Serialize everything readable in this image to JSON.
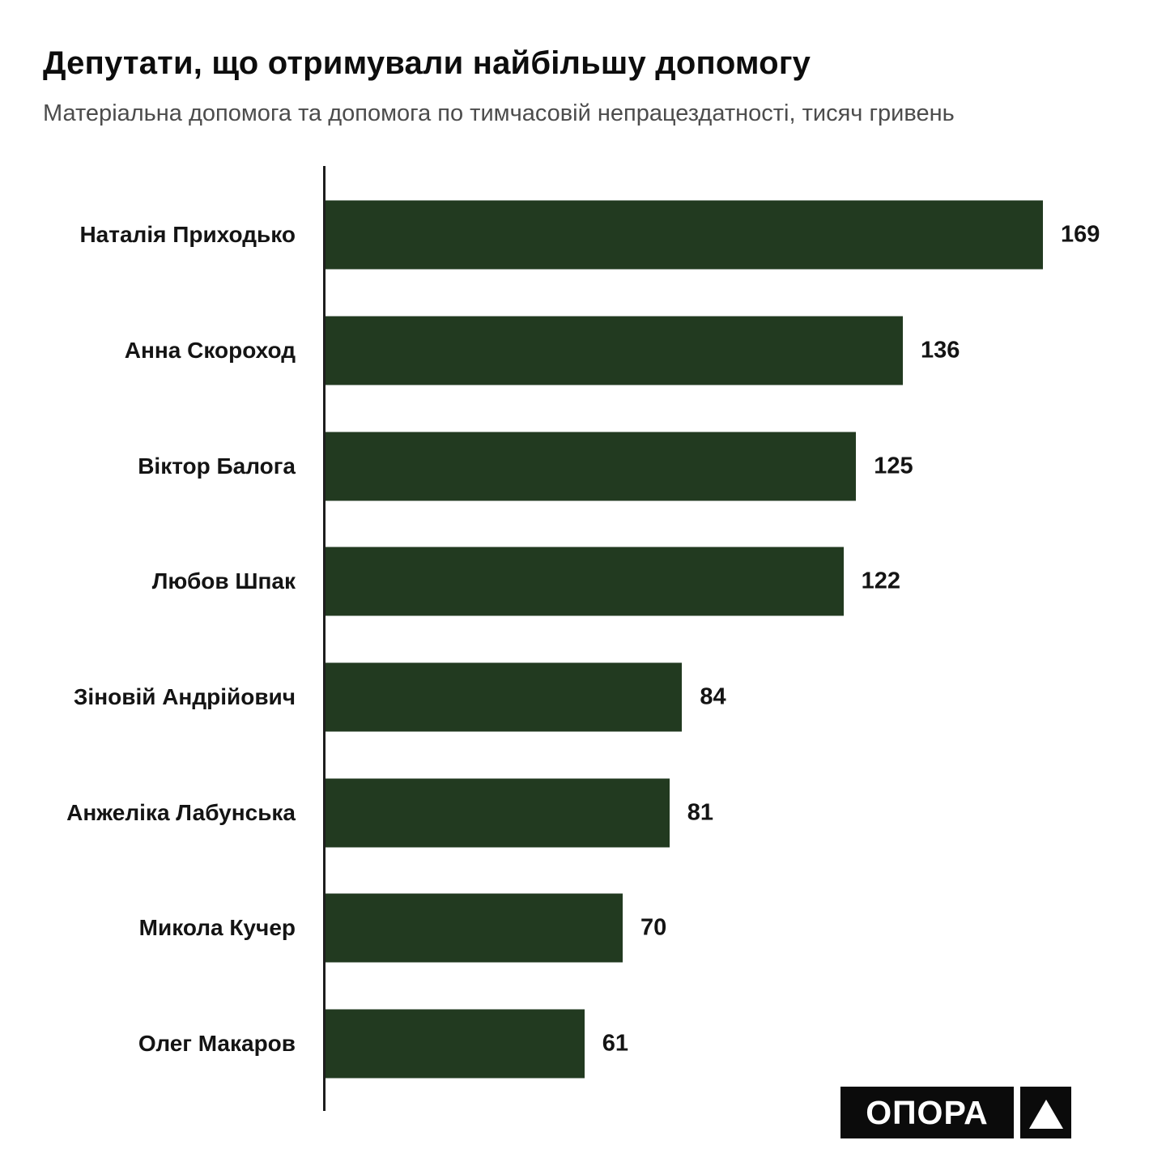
{
  "chart_data": {
    "type": "bar",
    "orientation": "horizontal",
    "title": "Депутати, що отримували найбільшу допомогу",
    "subtitle": "Матеріальна допомога та допомога по тимчасовій непрацездатності, тисяч гривень",
    "categories": [
      "Наталія Приходько",
      "Анна Скороход",
      "Віктор Балога",
      "Любов Шпак",
      "Зіновій Андрійович",
      "Анжеліка Лабунська",
      "Микола Кучер",
      "Олег Макаров"
    ],
    "values": [
      169,
      136,
      125,
      122,
      84,
      81,
      70,
      61
    ],
    "value_labels_shown": true,
    "grid": false,
    "legend": false,
    "bar_color": "#223a20",
    "axis_color": "#1d1d1d",
    "text_color": "#141414",
    "subtitle_color": "#4c4c4c"
  },
  "logo": {
    "text": "ОПОРА",
    "icon": "triangle-up",
    "bg_color": "#0b0b0b",
    "fg_color": "#ffffff"
  }
}
